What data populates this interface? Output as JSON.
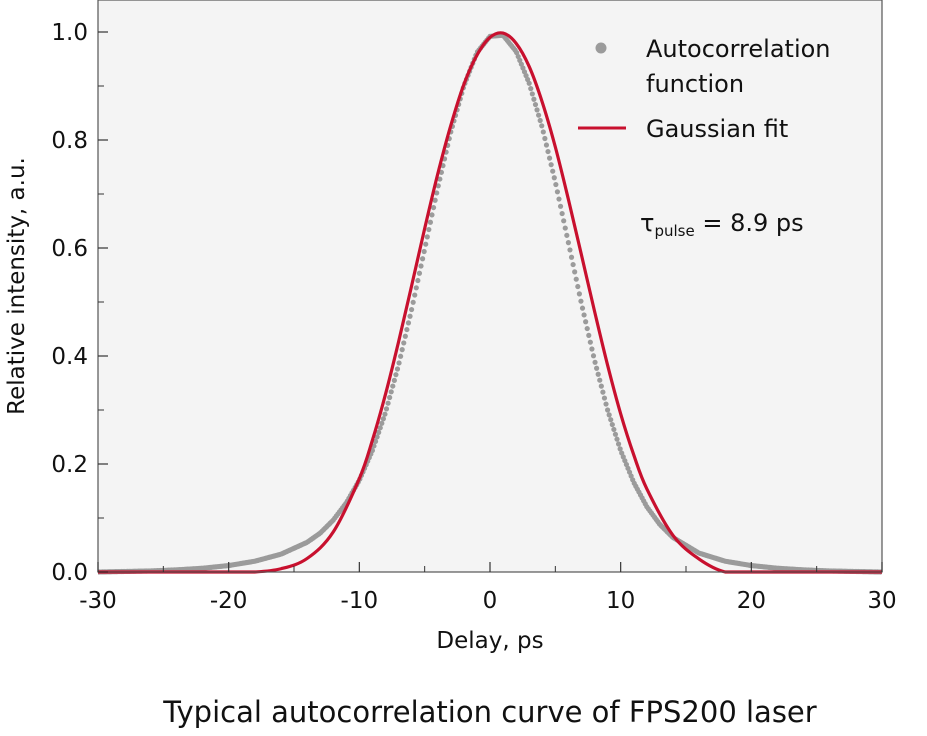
{
  "chart_data": {
    "type": "scatter",
    "title": "",
    "caption": "Typical autocorrelation curve of FPS200 laser",
    "xlabel": "Delay, ps",
    "ylabel": "Relative intensity, a.u.",
    "xlim": [
      -30,
      30
    ],
    "ylim": [
      0,
      1.0
    ],
    "x_ticks": [
      -30,
      -20,
      -10,
      0,
      10,
      20,
      30
    ],
    "x_tick_labels": [
      "-30",
      "-20",
      "-10",
      "0",
      "10",
      "20",
      "30"
    ],
    "y_ticks": [
      0.0,
      0.2,
      0.4,
      0.6,
      0.8,
      1.0
    ],
    "y_tick_labels": [
      "0.0",
      "0.2",
      "0.4",
      "0.6",
      "0.8",
      "1.0"
    ],
    "grid": false,
    "legend_position": "top-right",
    "background_color": "#f4f4f4",
    "series": [
      {
        "name": "Autocorrelation function",
        "kind": "points",
        "color": "#9b9b9b",
        "x": [
          -30,
          -28,
          -26,
          -24,
          -22,
          -20,
          -18,
          -16,
          -14,
          -13,
          -12,
          -11,
          -10,
          -9,
          -8,
          -7,
          -6,
          -5,
          -4,
          -3,
          -2,
          -1,
          0,
          1,
          2,
          3,
          4,
          5,
          6,
          7,
          8,
          9,
          10,
          11,
          12,
          13,
          14,
          16,
          18,
          20,
          22,
          24,
          26,
          28,
          30
        ],
        "y": [
          0.0,
          0.001,
          0.002,
          0.004,
          0.007,
          0.012,
          0.02,
          0.033,
          0.055,
          0.072,
          0.096,
          0.128,
          0.17,
          0.225,
          0.295,
          0.383,
          0.486,
          0.598,
          0.711,
          0.815,
          0.9,
          0.962,
          0.992,
          0.994,
          0.964,
          0.905,
          0.823,
          0.722,
          0.61,
          0.497,
          0.392,
          0.3,
          0.225,
          0.166,
          0.121,
          0.088,
          0.064,
          0.035,
          0.02,
          0.012,
          0.007,
          0.004,
          0.002,
          0.001,
          0.0
        ]
      },
      {
        "name": "Gaussian fit",
        "kind": "line",
        "color": "#c8102e",
        "x": [
          -30,
          -25,
          -20,
          -18,
          -16,
          -14,
          -12,
          -10,
          -9,
          -8,
          -7,
          -6,
          -5,
          -4,
          -3,
          -2,
          -1,
          0,
          1,
          2,
          3,
          4,
          5,
          6,
          7,
          8,
          9,
          10,
          11,
          12,
          14,
          16,
          18,
          20,
          25,
          30
        ],
        "y": [
          0.0,
          0.0,
          0.0,
          0.0,
          0.006,
          0.025,
          0.074,
          0.173,
          0.244,
          0.329,
          0.426,
          0.53,
          0.636,
          0.737,
          0.827,
          0.903,
          0.957,
          0.99,
          0.998,
          0.979,
          0.936,
          0.87,
          0.787,
          0.69,
          0.587,
          0.483,
          0.383,
          0.293,
          0.217,
          0.154,
          0.068,
          0.024,
          0.0,
          0.0,
          0.0,
          0.0
        ]
      }
    ],
    "annotation": {
      "symbol": "τ",
      "subscript": "pulse",
      "text": " = 8.9 ps"
    }
  }
}
